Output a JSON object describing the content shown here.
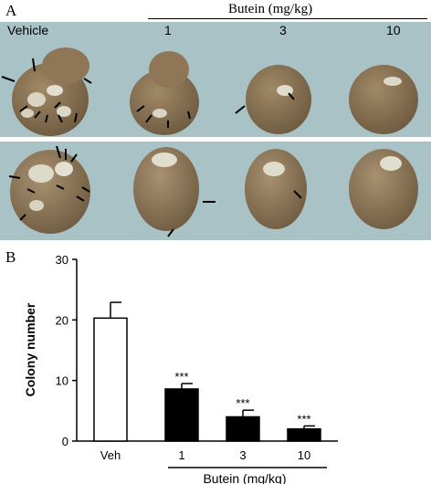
{
  "panel_a": {
    "label": "A",
    "group_header": "Butein (mg/kg)",
    "column_labels": [
      "Vehicle",
      "1",
      "3",
      "10"
    ]
  },
  "panel_b": {
    "label": "B"
  },
  "chart_data": {
    "type": "bar",
    "categories": [
      "Veh",
      "1",
      "3",
      "10"
    ],
    "values": [
      20.3,
      8.6,
      4.0,
      2.0
    ],
    "errors": [
      2.6,
      0.9,
      1.1,
      0.5
    ],
    "significance": [
      "",
      "***",
      "***",
      "***"
    ],
    "bar_fills": [
      "#ffffff",
      "#000000",
      "#000000",
      "#000000"
    ],
    "ylabel": "Colony number",
    "ylim": [
      0,
      30
    ],
    "yticks": [
      0,
      10,
      20,
      30
    ],
    "group_label": "Butein (mg/kg)"
  }
}
